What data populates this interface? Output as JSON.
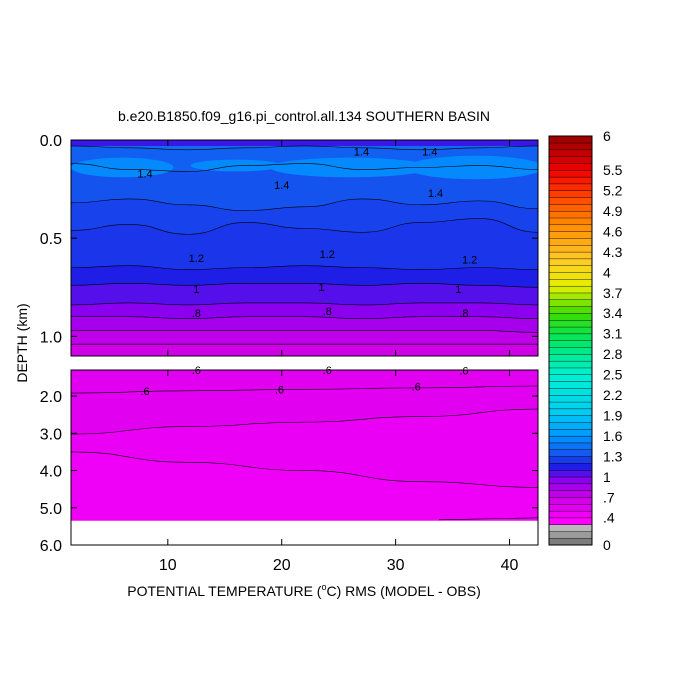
{
  "chart_data": {
    "type": "heatmap",
    "title": "b.e20.B1850.f09_g16.pi_control.all.134 SOUTHERN BASIN",
    "xlabel_prefix": "POTENTIAL TEMPERATURE (",
    "xlabel_degree": "o",
    "xlabel_suffix": "C) RMS (MODEL - OBS)",
    "ylabel": "DEPTH (km)",
    "xlim": [
      1.5,
      42.5
    ],
    "x_ticks": [
      10,
      20,
      30,
      40
    ],
    "upper_panel": {
      "ylim": [
        0.0,
        1.1
      ],
      "y_ticks": [
        "0.0",
        "0.5",
        "1.0"
      ],
      "y_tick_values": [
        0.0,
        0.5,
        1.0
      ]
    },
    "lower_panel": {
      "ylim": [
        1.3,
        6.0
      ],
      "y_ticks": [
        "2.0",
        "3.0",
        "4.0",
        "5.0",
        "6.0"
      ],
      "y_tick_values": [
        2.0,
        3.0,
        4.0,
        5.0,
        6.0
      ],
      "data_bottom_depth": 5.35
    },
    "contour_levels": [
      {
        "level": 1.4,
        "depth": [
          0.03,
          0.04,
          0.05,
          0.04,
          0.03,
          0.04,
          0.05,
          0.04,
          0.03
        ]
      },
      {
        "level": 1.35,
        "depth": [
          0.12,
          0.15,
          0.16,
          0.13,
          0.12,
          0.15,
          0.14,
          0.13,
          0.15
        ]
      },
      {
        "level": 1.3,
        "depth": [
          0.32,
          0.3,
          0.33,
          0.36,
          0.34,
          0.3,
          0.33,
          0.31,
          0.35
        ]
      },
      {
        "level": 1.25,
        "depth": [
          0.46,
          0.43,
          0.48,
          0.42,
          0.45,
          0.47,
          0.42,
          0.4,
          0.47
        ]
      },
      {
        "level": 1.2,
        "depth": [
          0.65,
          0.64,
          0.66,
          0.65,
          0.64,
          0.65,
          0.66,
          0.65,
          0.66
        ]
      },
      {
        "level": 1.1,
        "depth": [
          0.74,
          0.73,
          0.74,
          0.73,
          0.73,
          0.74,
          0.73,
          0.74,
          0.75
        ]
      },
      {
        "level": 1.0,
        "depth": [
          0.84,
          0.83,
          0.84,
          0.83,
          0.83,
          0.84,
          0.83,
          0.83,
          0.84
        ]
      },
      {
        "level": 0.9,
        "depth": [
          0.9,
          0.9,
          0.91,
          0.9,
          0.9,
          0.91,
          0.9,
          0.9,
          0.91
        ]
      },
      {
        "level": 0.8,
        "depth": [
          0.97,
          0.97,
          0.97,
          0.97,
          0.97,
          0.97,
          0.97,
          0.97,
          0.98
        ]
      },
      {
        "level": 0.7,
        "depth": [
          1.04,
          1.04,
          1.04,
          1.04,
          1.04,
          1.04,
          1.04,
          1.04,
          1.04
        ]
      }
    ],
    "contour_labels_upper": [
      {
        "text": "1.4",
        "x": 27.0,
        "depth": 0.07
      },
      {
        "text": "1.4",
        "x": 33.0,
        "depth": 0.07
      },
      {
        "text": "1.4",
        "x": 8.0,
        "depth": 0.18
      },
      {
        "text": "1.4",
        "x": 20.0,
        "depth": 0.24
      },
      {
        "text": "1.4",
        "x": 33.5,
        "depth": 0.28
      },
      {
        "text": "1.2",
        "x": 12.5,
        "depth": 0.61
      },
      {
        "text": "1.2",
        "x": 24.0,
        "depth": 0.59
      },
      {
        "text": "1.2",
        "x": 36.5,
        "depth": 0.62
      },
      {
        "text": "1",
        "x": 12.5,
        "depth": 0.77
      },
      {
        "text": "1",
        "x": 23.5,
        "depth": 0.76
      },
      {
        "text": "1",
        "x": 35.5,
        "depth": 0.77
      },
      {
        "text": ".8",
        "x": 12.5,
        "depth": 0.89
      },
      {
        "text": ".8",
        "x": 24.0,
        "depth": 0.88
      },
      {
        "text": ".8",
        "x": 36.0,
        "depth": 0.89
      }
    ],
    "lower_contours": [
      {
        "level": 0.6,
        "depth": [
          1.92,
          1.86,
          1.82,
          1.78,
          1.73
        ]
      },
      {
        "level": 0.55,
        "depth": [
          3.02,
          2.82,
          2.7,
          2.55,
          2.35
        ]
      },
      {
        "level": 0.5,
        "depth": [
          3.5,
          3.78,
          4.0,
          4.3,
          4.45
        ]
      }
    ],
    "contour_labels_lower": [
      {
        "text": ".6",
        "x": 12.5,
        "depth": 1.35
      },
      {
        "text": ".6",
        "x": 24.0,
        "depth": 1.35
      },
      {
        "text": ".6",
        "x": 36.0,
        "depth": 1.37
      },
      {
        "text": ".6",
        "x": 8.0,
        "depth": 1.92
      },
      {
        "text": ".6",
        "x": 19.8,
        "depth": 1.88
      },
      {
        "text": ".6",
        "x": 31.8,
        "depth": 1.8
      }
    ],
    "colorbar": {
      "min": 0,
      "max": 6,
      "step": 0.1,
      "tick_labels": [
        "6",
        "5.5",
        "5.2",
        "4.9",
        "4.6",
        "4.3",
        "4",
        "3.7",
        "3.4",
        "3.1",
        "2.8",
        "2.5",
        "2.2",
        "1.9",
        "1.6",
        "1.3",
        "1",
        ".7",
        ".4",
        "0"
      ],
      "tick_values": [
        6,
        5.5,
        5.2,
        4.9,
        4.6,
        4.3,
        4.0,
        3.7,
        3.4,
        3.1,
        2.8,
        2.5,
        2.2,
        1.9,
        1.6,
        1.3,
        1.0,
        0.7,
        0.4,
        0
      ]
    }
  }
}
